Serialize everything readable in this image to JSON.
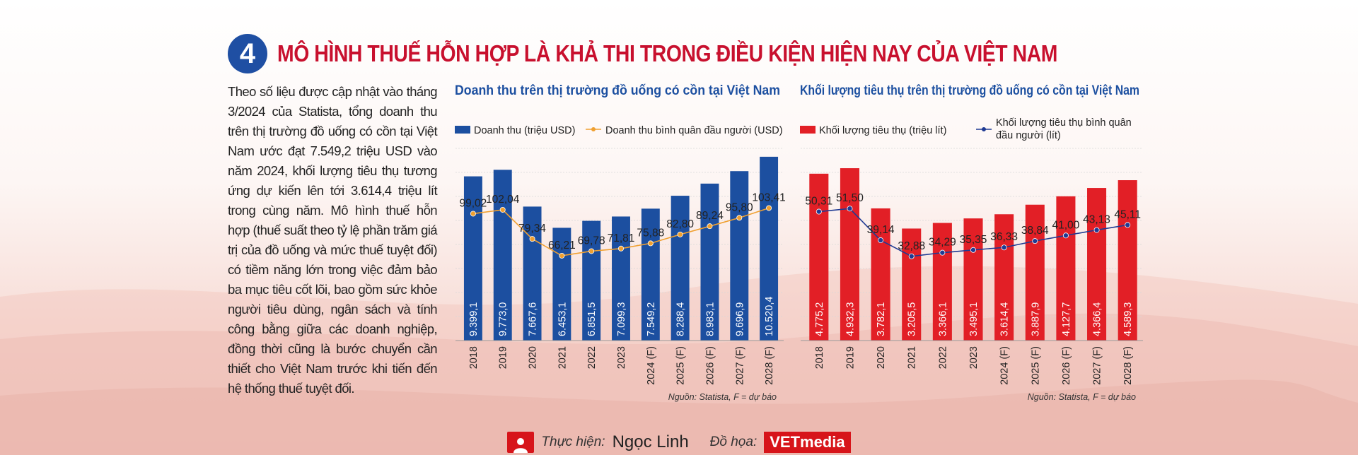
{
  "header": {
    "number": "4",
    "title": "MÔ HÌNH THUẾ HỖN HỢP LÀ KHẢ THI TRONG ĐIỀU KIỆN HIỆN NAY CỦA VIỆT NAM"
  },
  "intro_text": "Theo số liệu được cập nhật vào tháng 3/2024 của Statista, tổng doanh thu trên thị trường đồ uống có cồn tại Việt Nam ước đạt 7.549,2 triệu USD vào năm 2024, khối lượng tiêu thụ tương ứng dự kiến lên tới 3.614,4 triệu lít trong cùng năm. Mô hình thuế hỗn hợp (thuế suất theo tỷ lệ phần trăm giá trị của đồ uống và mức thuế tuyệt đối) có tiềm năng lớn trong việc đảm bảo ba mục tiêu cốt lõi, bao gồm sức khỏe người tiêu dùng, ngân sách và tính công bằng giữa các doanh nghiệp, đồng thời cũng là bước chuyển cần thiết cho Việt Nam trước khi tiến đến hệ thống thuế tuyệt đối.",
  "footer": {
    "author_label": "Thực hiện:",
    "author_name": "Ngọc Linh",
    "design_label": "Đồ họa:",
    "brand": "VETmedia"
  },
  "chart_data": [
    {
      "type": "bar",
      "title": "Doanh thu trên thị trường đồ uống có cồn tại Việt Nam",
      "categories": [
        "2018",
        "2019",
        "2020",
        "2021",
        "2022",
        "2023",
        "2024 (F)",
        "2025 (F)",
        "2026 (F)",
        "2027 (F)",
        "2028 (F)"
      ],
      "series": [
        {
          "name": "Doanh thu (triệu USD)",
          "kind": "bar",
          "color": "#1c4fa0",
          "values": [
            9399.1,
            9773.0,
            7667.6,
            6453.1,
            6851.5,
            7099.3,
            7549.2,
            8288.4,
            8983.1,
            9696.9,
            10520.4
          ],
          "labels": [
            "9.399,1",
            "9.773,0",
            "7.667,6",
            "6.453,1",
            "6.851,5",
            "7.099,3",
            "7.549,2",
            "8.288,4",
            "8.983,1",
            "9.696,9",
            "10.520,4"
          ]
        },
        {
          "name": "Doanh thu bình quân đầu người (USD)",
          "kind": "line",
          "color": "#f0a030",
          "values": [
            99.02,
            102.04,
            79.34,
            66.21,
            69.78,
            71.81,
            75.88,
            82.8,
            89.24,
            95.8,
            103.41
          ],
          "labels": [
            "99,02",
            "102,04",
            "79,34",
            "66,21",
            "69,78",
            "71,81",
            "75,88",
            "82,80",
            "89,24",
            "95,80",
            "103,41"
          ]
        }
      ],
      "bar_ylim": [
        0,
        11000
      ],
      "line_ylim": [
        0,
        150
      ],
      "grid": true,
      "legend": "top",
      "source": "Nguồn: Statista, F = dự báo"
    },
    {
      "type": "bar",
      "title": "Khối lượng tiêu thụ trên thị trường đồ uống có cồn tại Việt Nam",
      "categories": [
        "2018",
        "2019",
        "2020",
        "2021",
        "2022",
        "2023",
        "2024 (F)",
        "2025 (F)",
        "2026 (F)",
        "2027 (F)",
        "2028 (F)"
      ],
      "series": [
        {
          "name": "Khối lượng tiêu thụ (triệu lít)",
          "kind": "bar",
          "color": "#e21f26",
          "values": [
            4775.2,
            4932.3,
            3782.1,
            3205.5,
            3366.1,
            3495.1,
            3614.4,
            3887.9,
            4127.7,
            4366.4,
            4589.3
          ],
          "labels": [
            "4.775,2",
            "4.932,3",
            "3.782,1",
            "3.205,5",
            "3.366,1",
            "3.495,1",
            "3.614,4",
            "3.887,9",
            "4.127,7",
            "4.366,4",
            "4.589,3"
          ]
        },
        {
          "name": "Khối lượng tiêu thụ bình quân đầu người (lít)",
          "kind": "line",
          "color": "#1f3a93",
          "values": [
            50.31,
            51.5,
            39.14,
            32.88,
            34.29,
            35.35,
            36.33,
            38.84,
            41.0,
            43.13,
            45.11
          ],
          "labels": [
            "50,31",
            "51,50",
            "39,14",
            "32,88",
            "34,29",
            "35,35",
            "36,33",
            "38,84",
            "41,00",
            "43,13",
            "45,11"
          ]
        }
      ],
      "bar_ylim": [
        0,
        5500
      ],
      "line_ylim": [
        0,
        75
      ],
      "grid": true,
      "legend": "top",
      "source": "Nguồn: Statista, F = dự báo"
    }
  ]
}
